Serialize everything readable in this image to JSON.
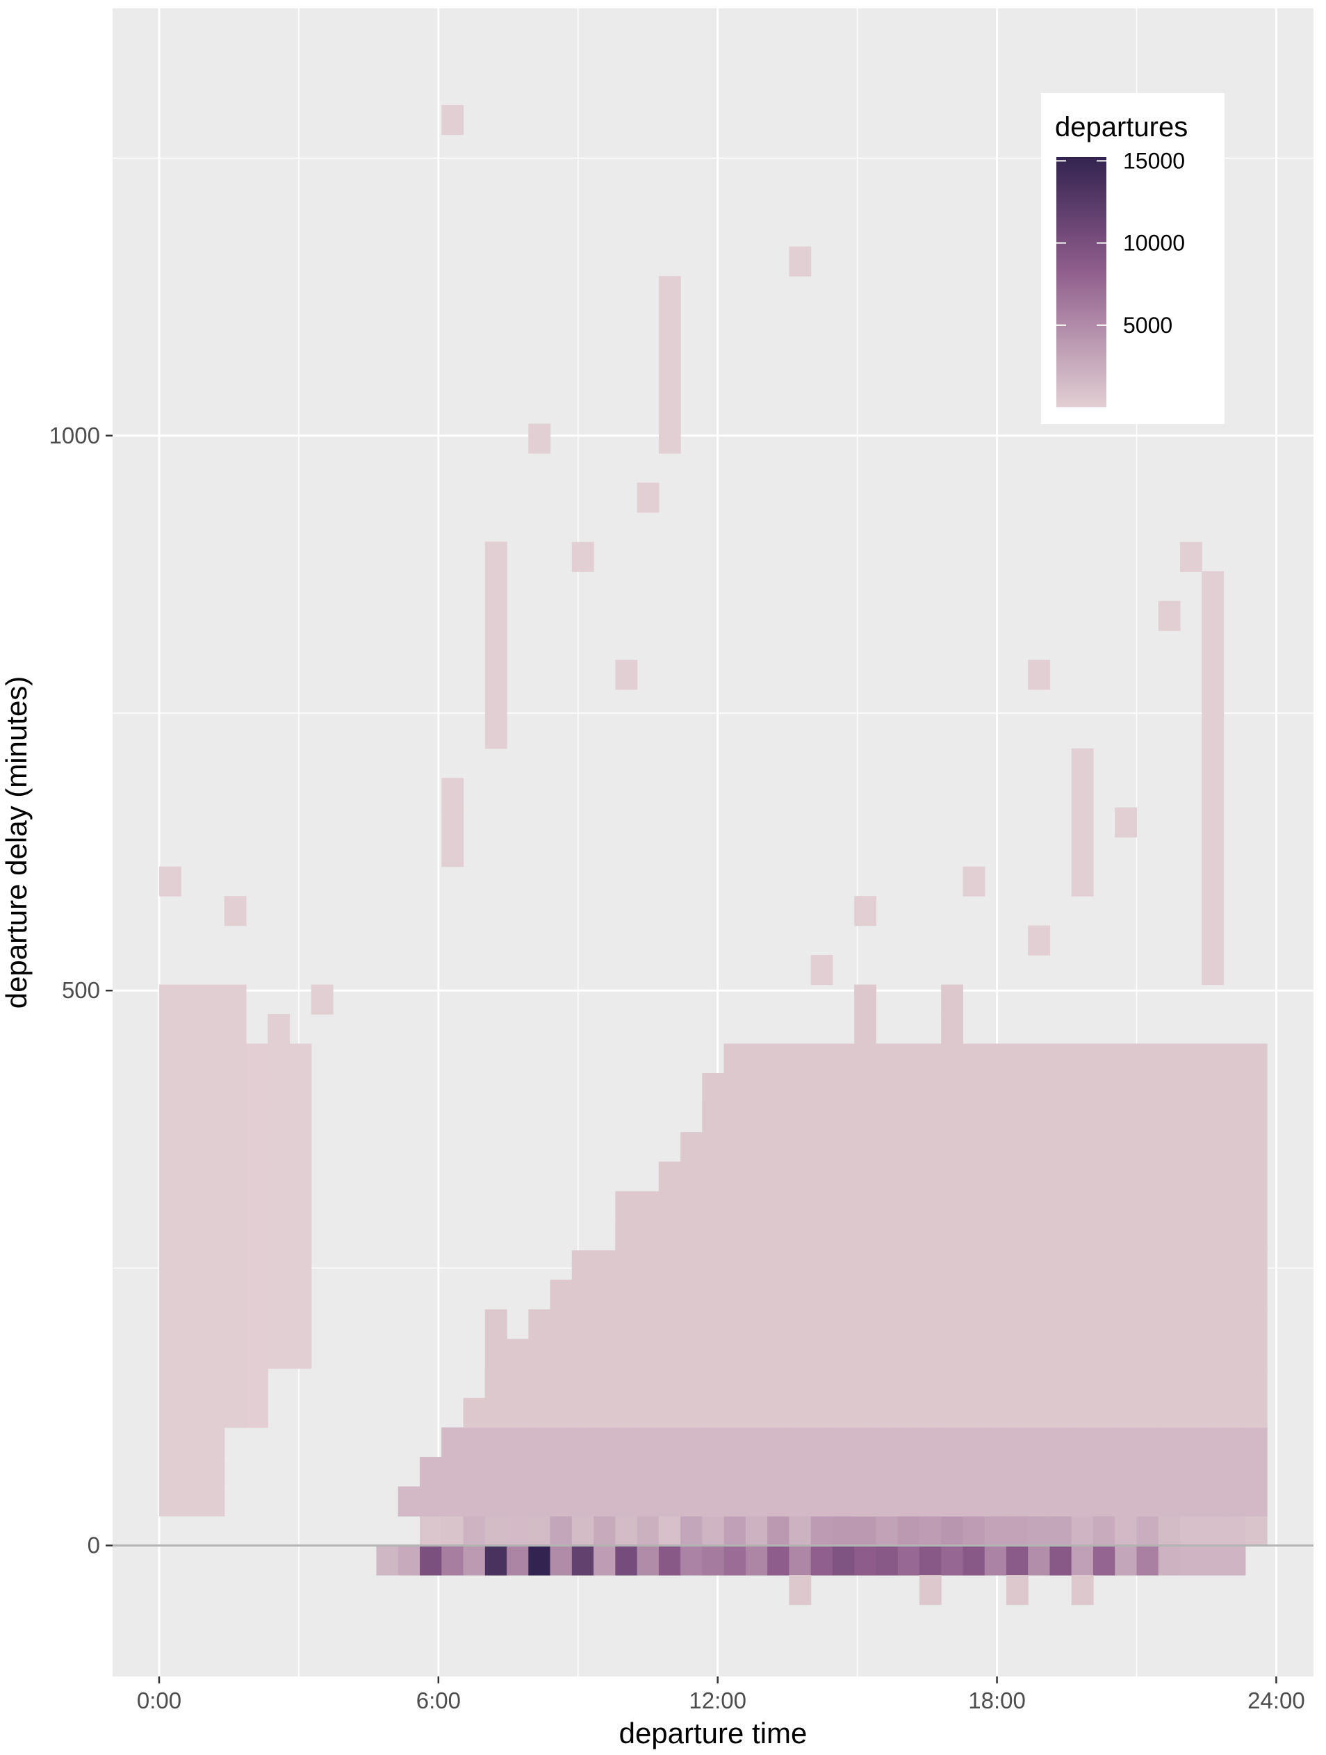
{
  "chart_data": {
    "type": "heatmap",
    "title": "",
    "xlabel": "departure time",
    "ylabel": "departure delay (minutes)",
    "x_unit": "hours",
    "xlim": [
      -1,
      24.8
    ],
    "ylim": [
      -118,
      1385
    ],
    "x_ticks": [
      {
        "value": 0,
        "label": "0:00"
      },
      {
        "value": 6,
        "label": "6:00"
      },
      {
        "value": 12,
        "label": "12:00"
      },
      {
        "value": 18,
        "label": "18:00"
      },
      {
        "value": 24,
        "label": "24:00"
      }
    ],
    "y_ticks": [
      {
        "value": 0,
        "label": "0"
      },
      {
        "value": 500,
        "label": "500"
      },
      {
        "value": 1000,
        "label": "1000"
      }
    ],
    "x_minor": [
      3,
      9,
      15,
      21
    ],
    "y_minor": [
      250,
      750,
      1250
    ],
    "grid": true,
    "background_color": "#ebebeb",
    "grid_color": "#ffffff",
    "reference_line": {
      "y": 0,
      "color": "#b3b3b3"
    },
    "bin_width": {
      "x": 0.4667,
      "y": 26.6
    },
    "x_centers": [
      0.2333,
      0.7,
      1.1667,
      1.6333,
      2.1,
      2.5667,
      3.0333,
      3.5,
      3.9667,
      4.4333,
      4.9,
      5.3667,
      5.8333,
      6.3,
      6.7667,
      7.2333,
      7.7,
      8.1667,
      8.6333,
      9.1,
      9.5667,
      10.0333,
      10.5,
      10.9667,
      11.4333,
      11.9,
      12.3667,
      12.8333,
      13.3,
      13.7667,
      14.2333,
      14.7,
      15.1667,
      15.6333,
      16.1,
      16.5667,
      17.0333,
      17.5,
      17.9667,
      18.4333,
      18.9,
      19.3667,
      19.8333,
      20.3,
      20.7667,
      21.2333,
      21.7,
      22.1667,
      22.6333,
      23.1,
      23.5667
    ],
    "y_bins": [
      {
        "value": -13.3,
        "counts": [
          0,
          0,
          0,
          0,
          0,
          0,
          0,
          0,
          0,
          0,
          1200,
          2000,
          9000,
          5000,
          3000,
          13000,
          4500,
          15000,
          4000,
          11000,
          2800,
          9500,
          4000,
          8000,
          4600,
          5200,
          6200,
          4400,
          7400,
          4300,
          7300,
          8600,
          7600,
          8000,
          6600,
          8000,
          6700,
          8000,
          4600,
          7800,
          3800,
          8000,
          2600,
          6800,
          2200,
          4800,
          1500,
          1300,
          1300,
          1300,
          0
        ]
      },
      {
        "value": 13.3,
        "counts": [
          0,
          0,
          0,
          0,
          0,
          0,
          0,
          0,
          0,
          0,
          0,
          0,
          400,
          500,
          1400,
          900,
          1000,
          900,
          2200,
          900,
          2000,
          900,
          1600,
          700,
          2200,
          1300,
          2600,
          1500,
          3100,
          1500,
          2900,
          3100,
          3100,
          2500,
          3100,
          2800,
          3300,
          2800,
          2400,
          2400,
          2200,
          2200,
          1300,
          1900,
          1100,
          1700,
          900,
          700,
          700,
          700,
          500
        ]
      }
    ],
    "low_bins": {
      "value": -39.9,
      "bins": [
        {
          "x": 13.7667,
          "count": 300
        },
        {
          "x": 16.5667,
          "count": 300
        },
        {
          "x": 18.4333,
          "count": 300
        },
        {
          "x": 19.8333,
          "count": 300
        }
      ]
    },
    "sparse_bins": [
      {
        "x": 0.2333,
        "y_from": 39.9,
        "y_to": 492.1,
        "count": 30
      },
      {
        "x": 0.2333,
        "y": 598.5,
        "count": 1
      },
      {
        "x": 0.7,
        "y_from": 39.9,
        "y_to": 492.1,
        "count": 30
      },
      {
        "x": 1.1667,
        "y_from": 39.9,
        "y_to": 492.1,
        "count": 30
      },
      {
        "x": 1.6333,
        "y_from": 119.7,
        "y_to": 492.1,
        "count": 20
      },
      {
        "x": 1.6333,
        "y": 571.9,
        "count": 1
      },
      {
        "x": 2.1,
        "y_from": 119.7,
        "y_to": 438.9,
        "count": 15
      },
      {
        "x": 2.5667,
        "y_from": 172.9,
        "y_to": 465.5,
        "count": 10
      },
      {
        "x": 3.0333,
        "y_from": 172.9,
        "y_to": 438.9,
        "count": 8
      },
      {
        "x": 3.5,
        "y": 492.1,
        "count": 1
      },
      {
        "x": 5.3667,
        "y": 39.9,
        "count": 200
      },
      {
        "x": 5.8333,
        "y_from": 39.9,
        "y_to": 66.5,
        "count": 300
      },
      {
        "x": 6.3,
        "y_from": 39.9,
        "y_to": 93.1,
        "count": 300
      },
      {
        "x": 6.3,
        "y_from": 625.1,
        "y_to": 678.3,
        "count": 1
      },
      {
        "x": 6.3,
        "y": 1284.6,
        "count": 1
      },
      {
        "x": 7.2333,
        "y_from": 39.9,
        "y_to": 199.5,
        "count": 300
      },
      {
        "x": 7.2333,
        "y_from": 731.5,
        "y_to": 890.9,
        "count": 1
      },
      {
        "x": 8.1667,
        "y_from": 39.9,
        "y_to": 172.9,
        "count": 300
      },
      {
        "x": 8.1667,
        "y": 997.5,
        "count": 1
      },
      {
        "x": 9.1,
        "y_from": 39.9,
        "y_to": 226.1,
        "count": 300
      },
      {
        "x": 9.1,
        "y": 890.9,
        "count": 1
      },
      {
        "x": 10.0333,
        "y_from": 39.9,
        "y_to": 305.9,
        "count": 300
      },
      {
        "x": 10.0333,
        "y": 784.7,
        "count": 1
      },
      {
        "x": 10.5,
        "y": 944.3,
        "count": 1
      },
      {
        "x": 10.9667,
        "y_from": 39.9,
        "y_to": 332.5,
        "count": 300
      },
      {
        "x": 10.9667,
        "y_from": 997.5,
        "y_to": 1130.5,
        "count": 1
      },
      {
        "x": 11.9,
        "y_from": 39.9,
        "y_to": 412.3,
        "count": 300
      },
      {
        "x": 12.3667,
        "y_from": 39.9,
        "y_to": 438.9,
        "count": 300
      },
      {
        "x": 13.7667,
        "y": 1157.1,
        "count": 1
      },
      {
        "x": 14.2333,
        "y": 518.7,
        "count": 1
      },
      {
        "x": 15.1667,
        "y_from": 39.9,
        "y_to": 492.1,
        "count": 300
      },
      {
        "x": 15.1667,
        "y": 571.9,
        "count": 1
      },
      {
        "x": 17.0333,
        "y_from": 39.9,
        "y_to": 492.1,
        "count": 300
      },
      {
        "x": 17.5,
        "y": 598.5,
        "count": 1
      },
      {
        "x": 18.9,
        "y": 545.3,
        "count": 1
      },
      {
        "x": 18.9,
        "y": 784.7,
        "count": 1
      },
      {
        "x": 19.8333,
        "y_from": 598.5,
        "y_to": 704.9,
        "count": 1
      },
      {
        "x": 20.7667,
        "y": 651.7,
        "count": 1
      },
      {
        "x": 21.7,
        "y": 837.7,
        "count": 1
      },
      {
        "x": 22.1667,
        "y": 890.9,
        "count": 1
      },
      {
        "x": 22.6333,
        "y_from": 518.7,
        "y_to": 864.3,
        "count": 1
      },
      {
        "x": 23.5667,
        "y_from": 39.9,
        "y_to": 438.9,
        "count": 300
      }
    ],
    "legend": {
      "title": "departures",
      "position": "top-right",
      "scale_min": 1,
      "scale_max": 15000,
      "breaks": [
        {
          "value": 5000,
          "label": "5000"
        },
        {
          "value": 10000,
          "label": "10000"
        },
        {
          "value": 15000,
          "label": "15000"
        }
      ],
      "color_low": "#e2cfd3",
      "color_mid": "#8f5d8c",
      "color_high": "#332350"
    }
  }
}
